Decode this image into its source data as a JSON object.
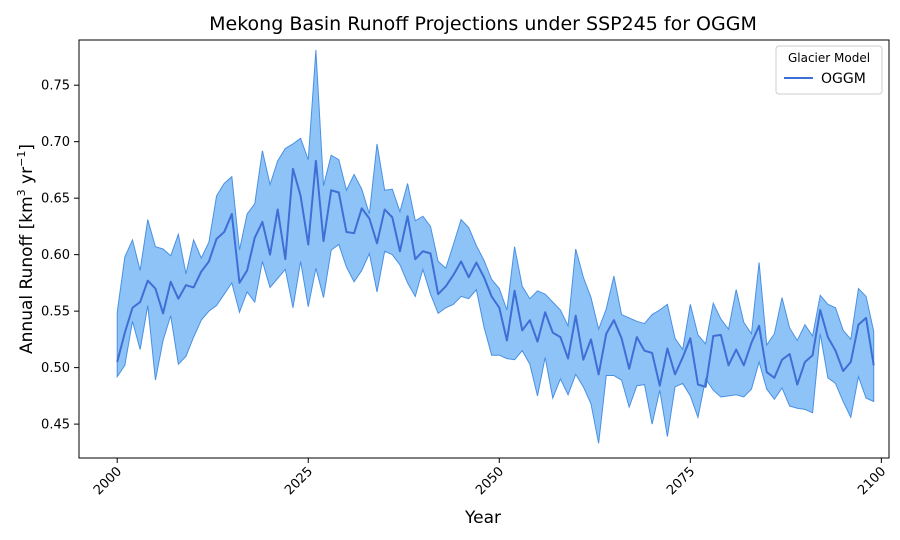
{
  "chart_data": {
    "type": "line",
    "title": "Mekong Basin Runoff Projections under SSP245 for OGGM",
    "xlabel": "Year",
    "ylabel": "Annual Runoff [km³ yr⁻¹]",
    "ylabel_parts": {
      "pre": "Annual Runoff [km",
      "sup1": "3",
      "mid": " yr",
      "sup2": "−1",
      "post": "]"
    },
    "xlim": [
      1995,
      2101
    ],
    "ylim": [
      0.42,
      0.79
    ],
    "xticks": [
      2000,
      2025,
      2050,
      2075,
      2100
    ],
    "yticks": [
      0.45,
      0.5,
      0.55,
      0.6,
      0.65,
      0.7,
      0.75
    ],
    "ytick_labels": [
      "0.45",
      "0.50",
      "0.55",
      "0.60",
      "0.65",
      "0.70",
      "0.75"
    ],
    "grid": false,
    "legend": {
      "title": "Glacier Model",
      "placement": "top-right",
      "entries": [
        "OGGM"
      ]
    },
    "colors": {
      "line": "#3d6fd6",
      "band": "#8ec3f7",
      "band_edge": "#4a90e2"
    },
    "x": [
      2000,
      2001,
      2002,
      2003,
      2004,
      2005,
      2006,
      2007,
      2008,
      2009,
      2010,
      2011,
      2012,
      2013,
      2014,
      2015,
      2016,
      2017,
      2018,
      2019,
      2020,
      2021,
      2022,
      2023,
      2024,
      2025,
      2026,
      2027,
      2028,
      2029,
      2030,
      2031,
      2032,
      2033,
      2034,
      2035,
      2036,
      2037,
      2038,
      2039,
      2040,
      2041,
      2042,
      2043,
      2044,
      2045,
      2046,
      2047,
      2048,
      2049,
      2050,
      2051,
      2052,
      2053,
      2054,
      2055,
      2056,
      2057,
      2058,
      2059,
      2060,
      2061,
      2062,
      2063,
      2064,
      2065,
      2066,
      2067,
      2068,
      2069,
      2070,
      2071,
      2072,
      2073,
      2074,
      2075,
      2076,
      2077,
      2078,
      2079,
      2080,
      2081,
      2082,
      2083,
      2084,
      2085,
      2086,
      2087,
      2088,
      2089,
      2090,
      2091,
      2092,
      2093,
      2094,
      2095,
      2096,
      2097,
      2098,
      2099
    ],
    "series": [
      {
        "name": "OGGM",
        "mean": [
          0.505,
          0.531,
          0.553,
          0.558,
          0.577,
          0.57,
          0.548,
          0.576,
          0.561,
          0.573,
          0.571,
          0.585,
          0.594,
          0.614,
          0.62,
          0.636,
          0.575,
          0.586,
          0.615,
          0.629,
          0.6,
          0.64,
          0.596,
          0.676,
          0.652,
          0.609,
          0.683,
          0.612,
          0.657,
          0.655,
          0.62,
          0.619,
          0.641,
          0.632,
          0.61,
          0.64,
          0.633,
          0.603,
          0.634,
          0.596,
          0.603,
          0.601,
          0.565,
          0.572,
          0.582,
          0.594,
          0.58,
          0.593,
          0.58,
          0.563,
          0.553,
          0.524,
          0.568,
          0.533,
          0.542,
          0.523,
          0.549,
          0.531,
          0.527,
          0.508,
          0.546,
          0.507,
          0.525,
          0.494,
          0.53,
          0.542,
          0.526,
          0.499,
          0.527,
          0.515,
          0.513,
          0.484,
          0.517,
          0.494,
          0.509,
          0.526,
          0.485,
          0.483,
          0.528,
          0.529,
          0.502,
          0.516,
          0.502,
          0.522,
          0.537,
          0.496,
          0.491,
          0.507,
          0.512,
          0.485,
          0.505,
          0.511,
          0.551,
          0.527,
          0.515,
          0.497,
          0.505,
          0.538,
          0.544,
          0.502
        ],
        "upper": [
          0.549,
          0.598,
          0.613,
          0.586,
          0.631,
          0.607,
          0.605,
          0.599,
          0.618,
          0.583,
          0.613,
          0.597,
          0.611,
          0.652,
          0.663,
          0.669,
          0.604,
          0.636,
          0.645,
          0.692,
          0.662,
          0.683,
          0.694,
          0.698,
          0.703,
          0.684,
          0.781,
          0.661,
          0.688,
          0.684,
          0.657,
          0.671,
          0.658,
          0.636,
          0.698,
          0.657,
          0.658,
          0.638,
          0.663,
          0.63,
          0.634,
          0.625,
          0.594,
          0.588,
          0.609,
          0.631,
          0.624,
          0.608,
          0.595,
          0.578,
          0.57,
          0.551,
          0.607,
          0.572,
          0.561,
          0.568,
          0.565,
          0.558,
          0.551,
          0.537,
          0.605,
          0.58,
          0.562,
          0.534,
          0.552,
          0.581,
          0.547,
          0.544,
          0.541,
          0.539,
          0.547,
          0.551,
          0.556,
          0.526,
          0.516,
          0.556,
          0.529,
          0.521,
          0.557,
          0.543,
          0.534,
          0.569,
          0.54,
          0.53,
          0.593,
          0.52,
          0.53,
          0.562,
          0.535,
          0.524,
          0.538,
          0.528,
          0.564,
          0.556,
          0.553,
          0.533,
          0.525,
          0.57,
          0.563,
          0.532
        ],
        "lower": [
          0.492,
          0.502,
          0.541,
          0.516,
          0.555,
          0.489,
          0.524,
          0.546,
          0.503,
          0.51,
          0.527,
          0.542,
          0.55,
          0.555,
          0.565,
          0.575,
          0.549,
          0.567,
          0.558,
          0.594,
          0.571,
          0.579,
          0.587,
          0.553,
          0.594,
          0.554,
          0.588,
          0.562,
          0.604,
          0.609,
          0.589,
          0.576,
          0.586,
          0.601,
          0.567,
          0.603,
          0.6,
          0.591,
          0.575,
          0.563,
          0.587,
          0.565,
          0.548,
          0.553,
          0.556,
          0.563,
          0.561,
          0.569,
          0.536,
          0.511,
          0.511,
          0.508,
          0.507,
          0.515,
          0.503,
          0.475,
          0.509,
          0.473,
          0.49,
          0.476,
          0.494,
          0.483,
          0.468,
          0.433,
          0.493,
          0.493,
          0.489,
          0.465,
          0.484,
          0.485,
          0.45,
          0.48,
          0.439,
          0.483,
          0.486,
          0.475,
          0.456,
          0.49,
          0.48,
          0.474,
          0.475,
          0.476,
          0.474,
          0.481,
          0.505,
          0.481,
          0.472,
          0.482,
          0.466,
          0.464,
          0.463,
          0.46,
          0.53,
          0.491,
          0.486,
          0.47,
          0.456,
          0.492,
          0.473,
          0.47
        ]
      }
    ]
  }
}
